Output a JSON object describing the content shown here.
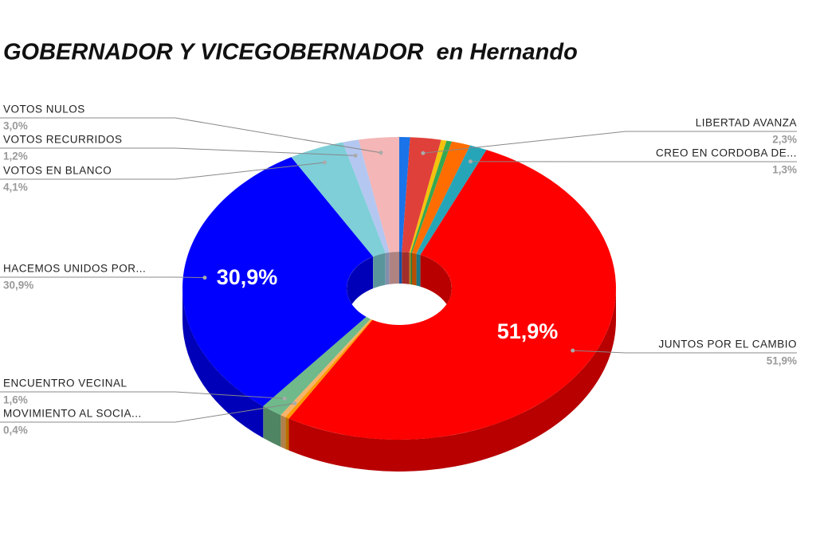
{
  "chart_data": {
    "type": "pie",
    "title": "GOBERNADOR Y VICEGOBERNADOR  en Hernando",
    "categories": [
      null,
      "LIBERTAD AVANZA",
      null,
      null,
      null,
      "CREO EN CORDOBA DE...",
      "JUNTOS POR EL CAMBIO",
      null,
      "MOVIMIENTO AL SOCIA...",
      "ENCUENTRO VECINAL",
      "HACEMOS UNIDOS POR...",
      "VOTOS EN BLANCO",
      "VOTOS RECURRIDOS",
      "VOTOS NULOS"
    ],
    "values": [
      0.8,
      2.3,
      0.4,
      0.4,
      1.4,
      1.3,
      51.9,
      0.3,
      0.4,
      1.6,
      30.9,
      4.1,
      1.2,
      3.0
    ],
    "value_labels": [
      null,
      "2,3%",
      null,
      null,
      null,
      "1,3%",
      "51,9%",
      null,
      "0,4%",
      "1,6%",
      "30,9%",
      "4,1%",
      "1,2%",
      "3,0%"
    ],
    "colors": [
      "#1a73e8",
      "#e0403a",
      "#f4c20d",
      "#34a853",
      "#ff6d01",
      "#26a5b8",
      "#ff0000",
      "#ff9900",
      "#f6b26b",
      "#6fb98a",
      "#0000ff",
      "#7ecfd8",
      "#b4c7f0",
      "#f4b6b6"
    ]
  }
}
